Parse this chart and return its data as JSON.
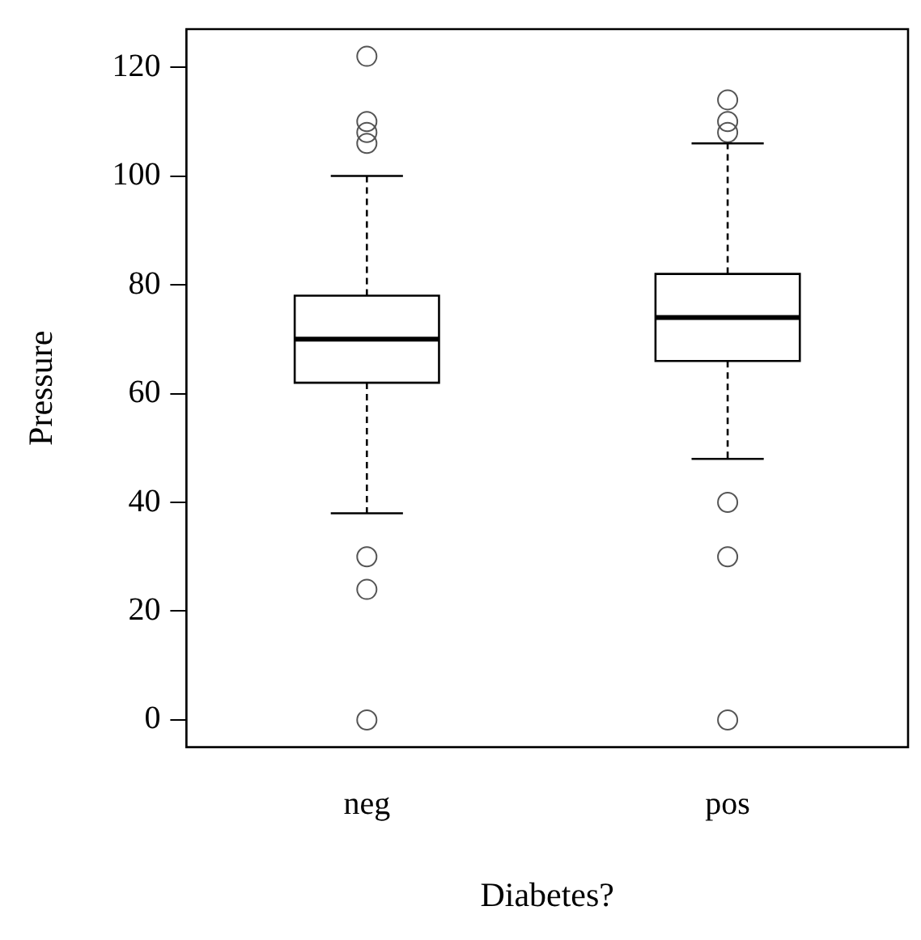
{
  "chart_data": {
    "type": "box",
    "xlabel": "Diabetes?",
    "ylabel": "Pressure",
    "categories": [
      "neg",
      "pos"
    ],
    "boxes": [
      {
        "low": 38,
        "q1": 62,
        "median": 70,
        "q3": 78,
        "high": 100,
        "outliers": [
          122,
          110,
          108,
          106,
          30,
          24,
          0
        ]
      },
      {
        "low": 48,
        "q1": 66,
        "median": 74,
        "q3": 82,
        "high": 106,
        "outliers": [
          114,
          110,
          108,
          40,
          30,
          0
        ]
      }
    ],
    "ylim": [
      -5,
      127
    ],
    "yticks": [
      0,
      20,
      40,
      60,
      80,
      100,
      120
    ],
    "grid": false,
    "legend": false
  }
}
